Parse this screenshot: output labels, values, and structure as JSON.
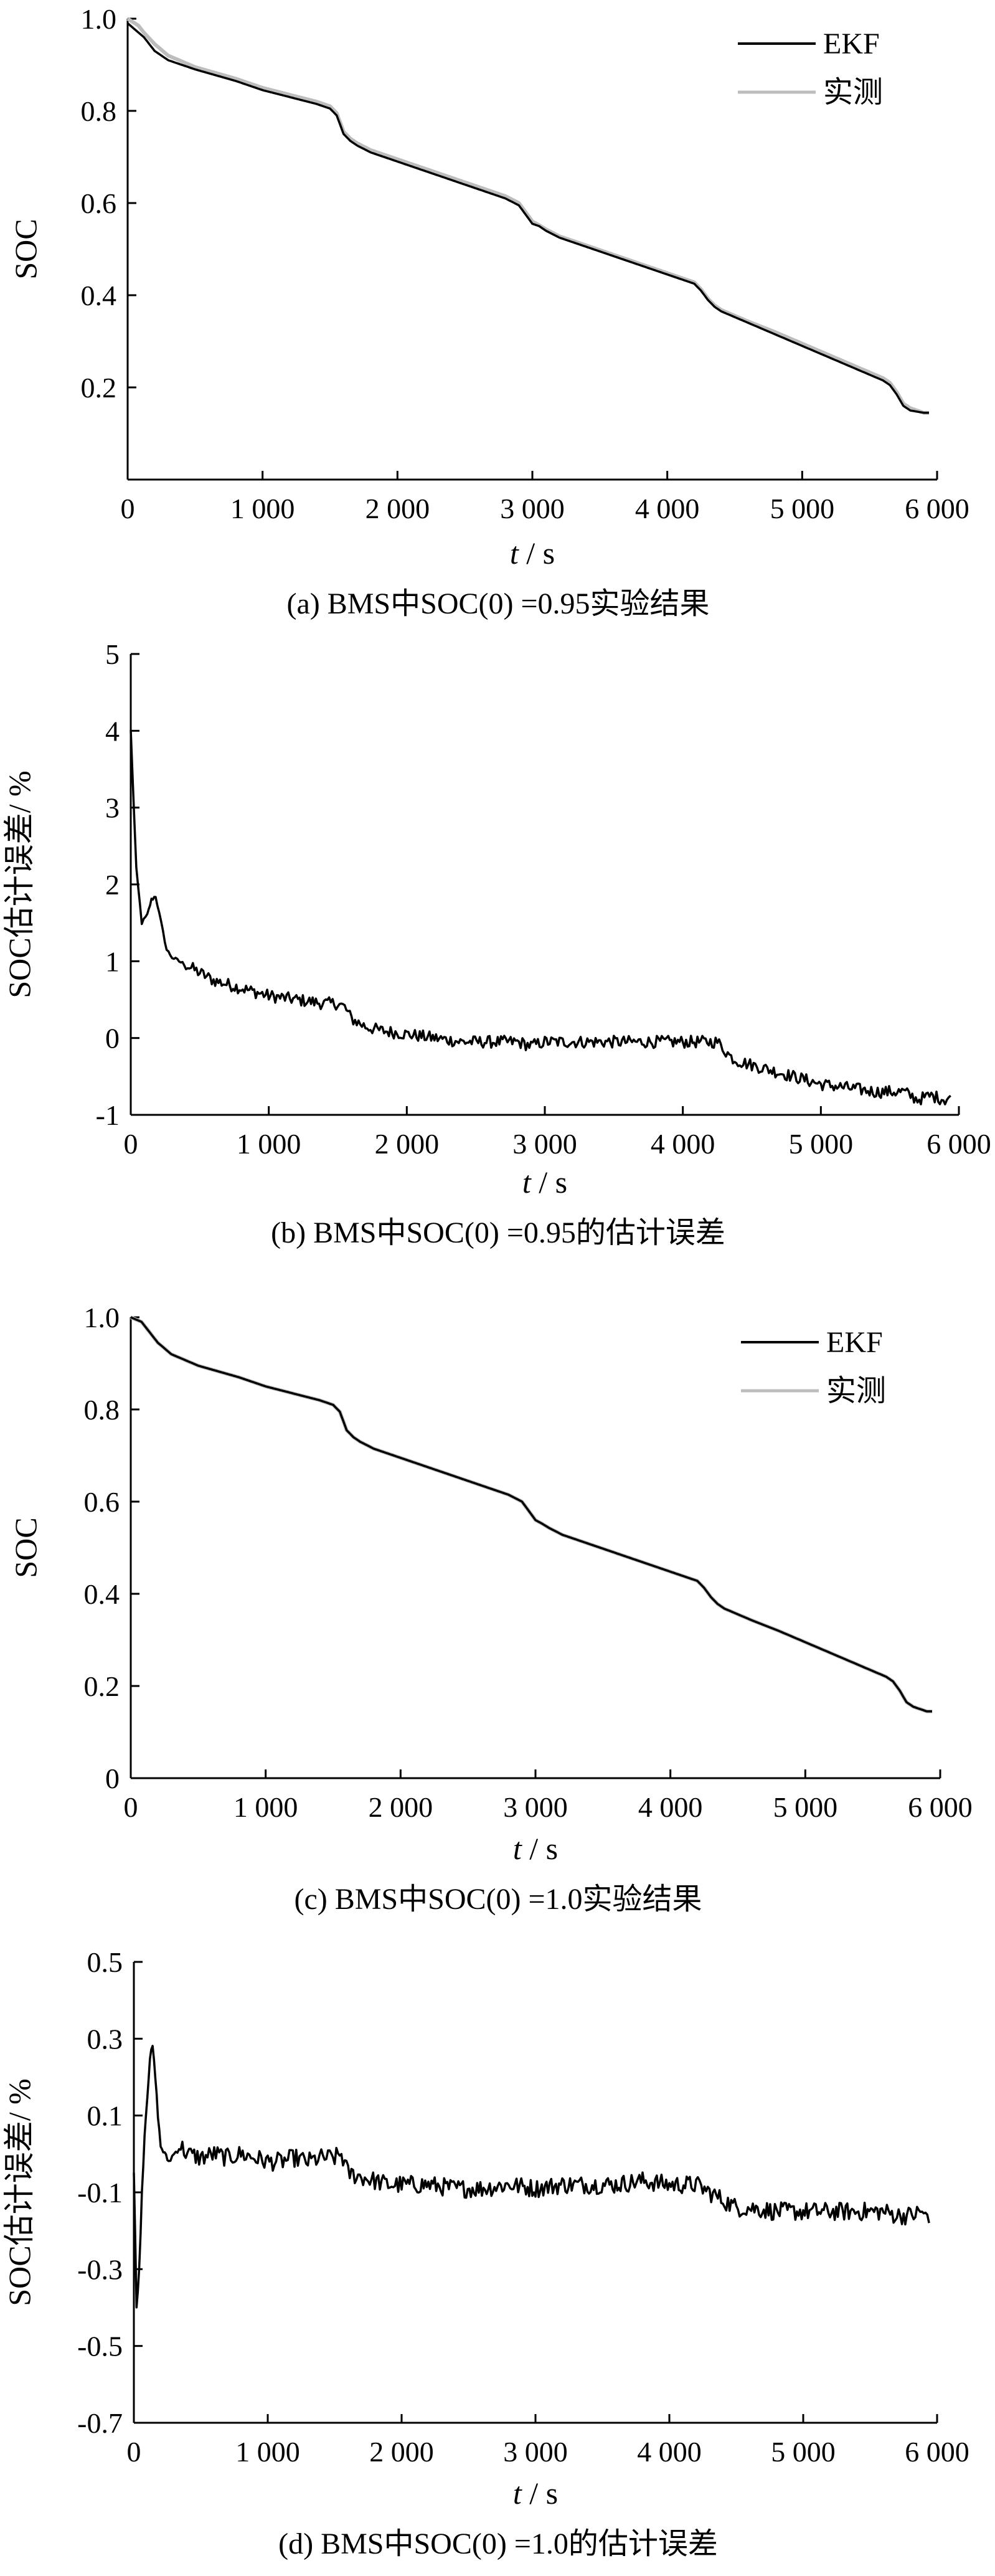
{
  "chart_data": [
    {
      "id": "a",
      "type": "line",
      "caption": "(a)  BMS中SOC(0) =0.95实验结果",
      "xlabel_var": "t",
      "xlabel_unit": " / s",
      "ylabel": "SOC",
      "xlim": [
        0,
        6000
      ],
      "ylim": [
        0,
        1.0
      ],
      "xticks": [
        0,
        1000,
        2000,
        3000,
        4000,
        5000,
        6000
      ],
      "xtick_labels": [
        "0",
        "1 000",
        "2 000",
        "3 000",
        "4 000",
        "5 000",
        "6 000"
      ],
      "yticks": [
        0.2,
        0.4,
        0.6,
        0.8,
        1.0
      ],
      "ytick_labels": [
        "0.2",
        "0.4",
        "0.6",
        "0.8",
        "1.0"
      ],
      "legend_position": "top-right",
      "series": [
        {
          "name": "EKF",
          "color": "#000000",
          "x": [
            0,
            80,
            120,
            200,
            300,
            500,
            800,
            1000,
            1200,
            1400,
            1500,
            1550,
            1600,
            1650,
            1700,
            1800,
            2000,
            2200,
            2400,
            2600,
            2800,
            2900,
            2950,
            3000,
            3050,
            3100,
            3200,
            3400,
            3600,
            3800,
            4000,
            4200,
            4250,
            4300,
            4350,
            4400,
            4600,
            4800,
            5000,
            5200,
            5400,
            5600,
            5650,
            5700,
            5750,
            5800,
            5900,
            5940
          ],
          "y": [
            0.99,
            0.97,
            0.96,
            0.93,
            0.91,
            0.89,
            0.865,
            0.845,
            0.83,
            0.815,
            0.805,
            0.79,
            0.75,
            0.735,
            0.725,
            0.71,
            0.69,
            0.67,
            0.65,
            0.63,
            0.61,
            0.595,
            0.575,
            0.555,
            0.55,
            0.54,
            0.525,
            0.505,
            0.485,
            0.465,
            0.445,
            0.425,
            0.41,
            0.39,
            0.375,
            0.365,
            0.34,
            0.315,
            0.29,
            0.265,
            0.24,
            0.215,
            0.205,
            0.185,
            0.16,
            0.15,
            0.145,
            0.145
          ]
        },
        {
          "name": "实测",
          "color": "#bdbdbd",
          "x": [
            0,
            80,
            120,
            200,
            300,
            500,
            800,
            1000,
            1200,
            1400,
            1500,
            1550,
            1600,
            1650,
            1700,
            1800,
            2000,
            2200,
            2400,
            2600,
            2800,
            2900,
            2950,
            3000,
            3050,
            3100,
            3200,
            3400,
            3600,
            3800,
            4000,
            4200,
            4250,
            4300,
            4350,
            4400,
            4600,
            4800,
            5000,
            5200,
            5400,
            5600,
            5650,
            5700,
            5750,
            5800,
            5900,
            5940
          ],
          "y": [
            1.0,
            0.985,
            0.97,
            0.945,
            0.92,
            0.895,
            0.87,
            0.85,
            0.835,
            0.82,
            0.81,
            0.795,
            0.755,
            0.74,
            0.73,
            0.715,
            0.695,
            0.675,
            0.655,
            0.635,
            0.615,
            0.6,
            0.58,
            0.56,
            0.552,
            0.543,
            0.528,
            0.508,
            0.488,
            0.468,
            0.448,
            0.428,
            0.413,
            0.393,
            0.378,
            0.368,
            0.343,
            0.32,
            0.295,
            0.27,
            0.245,
            0.22,
            0.21,
            0.19,
            0.165,
            0.155,
            0.145,
            0.145
          ]
        }
      ]
    },
    {
      "id": "b",
      "type": "line",
      "caption": "(b)  BMS中SOC(0) =0.95的估计误差",
      "xlabel_var": "t",
      "xlabel_unit": " / s",
      "ylabel": "SOC估计误差/ %",
      "xlim": [
        0,
        6000
      ],
      "ylim": [
        -1,
        5
      ],
      "xticks": [
        0,
        1000,
        2000,
        3000,
        4000,
        5000,
        6000
      ],
      "xtick_labels": [
        "0",
        "1 000",
        "2 000",
        "3 000",
        "4 000",
        "5 000",
        "6 000"
      ],
      "yticks": [
        -1,
        0,
        1,
        2,
        3,
        4,
        5
      ],
      "ytick_labels": [
        "-1",
        "0",
        "1",
        "2",
        "3",
        "4",
        "5"
      ],
      "series": [
        {
          "name": "",
          "color": "#000000",
          "x": [
            0,
            40,
            80,
            120,
            150,
            180,
            220,
            260,
            300,
            400,
            500,
            600,
            800,
            1000,
            1200,
            1400,
            1500,
            1550,
            1600,
            1700,
            1800,
            2000,
            2200,
            2400,
            2600,
            2800,
            2900,
            3000,
            3200,
            3500,
            3800,
            4000,
            4200,
            4250,
            4300,
            4350,
            4400,
            4500,
            4600,
            4800,
            5000,
            5200,
            5400,
            5600,
            5650,
            5700,
            5800,
            5900,
            5940
          ],
          "y": [
            4.0,
            2.2,
            1.5,
            1.6,
            1.8,
            1.85,
            1.5,
            1.15,
            1.05,
            0.95,
            0.85,
            0.75,
            0.65,
            0.55,
            0.5,
            0.45,
            0.45,
            0.4,
            0.25,
            0.15,
            0.1,
            0.05,
            0.0,
            -0.05,
            -0.05,
            -0.05,
            -0.1,
            -0.05,
            -0.05,
            -0.05,
            -0.05,
            -0.05,
            -0.05,
            -0.05,
            -0.15,
            -0.25,
            -0.3,
            -0.35,
            -0.4,
            -0.5,
            -0.6,
            -0.65,
            -0.7,
            -0.7,
            -0.75,
            -0.8,
            -0.75,
            -0.8,
            -0.75
          ]
        }
      ]
    },
    {
      "id": "c",
      "type": "line",
      "caption": "(c)  BMS中SOC(0) =1.0实验结果",
      "xlabel_var": "t",
      "xlabel_unit": " / s",
      "ylabel": "SOC",
      "xlim": [
        0,
        6000
      ],
      "ylim": [
        0,
        1.0
      ],
      "xticks": [
        0,
        1000,
        2000,
        3000,
        4000,
        5000,
        6000
      ],
      "xtick_labels": [
        "0",
        "1 000",
        "2 000",
        "3 000",
        "4 000",
        "5 000",
        "6 000"
      ],
      "yticks": [
        0,
        0.2,
        0.4,
        0.6,
        0.8,
        1.0
      ],
      "ytick_labels": [
        "0",
        "0.2",
        "0.4",
        "0.6",
        "0.8",
        "1.0"
      ],
      "legend_position": "top-right",
      "series": [
        {
          "name": "EKF",
          "color": "#000000",
          "x": [
            0,
            80,
            120,
            200,
            300,
            500,
            800,
            1000,
            1200,
            1400,
            1500,
            1550,
            1600,
            1650,
            1700,
            1800,
            2000,
            2200,
            2400,
            2600,
            2800,
            2900,
            2950,
            3000,
            3050,
            3100,
            3200,
            3400,
            3600,
            3800,
            4000,
            4200,
            4250,
            4300,
            4350,
            4400,
            4600,
            4800,
            5000,
            5200,
            5400,
            5600,
            5650,
            5700,
            5750,
            5800,
            5900,
            5940
          ],
          "y": [
            1.0,
            0.99,
            0.975,
            0.945,
            0.92,
            0.895,
            0.87,
            0.85,
            0.835,
            0.82,
            0.81,
            0.795,
            0.755,
            0.74,
            0.73,
            0.715,
            0.695,
            0.675,
            0.655,
            0.635,
            0.615,
            0.6,
            0.58,
            0.56,
            0.552,
            0.543,
            0.528,
            0.508,
            0.488,
            0.468,
            0.448,
            0.428,
            0.413,
            0.393,
            0.378,
            0.368,
            0.343,
            0.32,
            0.295,
            0.27,
            0.245,
            0.22,
            0.21,
            0.19,
            0.165,
            0.155,
            0.145,
            0.145
          ]
        },
        {
          "name": "实测",
          "color": "#bdbdbd",
          "x": [
            0,
            80,
            120,
            200,
            300,
            500,
            800,
            1000,
            1200,
            1400,
            1500,
            1550,
            1600,
            1650,
            1700,
            1800,
            2000,
            2200,
            2400,
            2600,
            2800,
            2900,
            2950,
            3000,
            3050,
            3100,
            3200,
            3400,
            3600,
            3800,
            4000,
            4200,
            4250,
            4300,
            4350,
            4400,
            4600,
            4800,
            5000,
            5200,
            5400,
            5600,
            5650,
            5700,
            5750,
            5800,
            5900,
            5940
          ],
          "y": [
            1.0,
            0.99,
            0.975,
            0.945,
            0.92,
            0.895,
            0.87,
            0.85,
            0.835,
            0.82,
            0.81,
            0.795,
            0.755,
            0.74,
            0.73,
            0.715,
            0.695,
            0.675,
            0.655,
            0.635,
            0.615,
            0.6,
            0.58,
            0.56,
            0.552,
            0.543,
            0.528,
            0.508,
            0.488,
            0.468,
            0.448,
            0.428,
            0.413,
            0.393,
            0.378,
            0.368,
            0.343,
            0.32,
            0.295,
            0.27,
            0.245,
            0.22,
            0.21,
            0.19,
            0.165,
            0.155,
            0.145,
            0.145
          ]
        }
      ]
    },
    {
      "id": "d",
      "type": "line",
      "caption": "(d)  BMS中SOC(0) =1.0的估计误差",
      "xlabel_var": "t",
      "xlabel_unit": " / s",
      "ylabel": "SOC估计误差/ %",
      "xlim": [
        0,
        6000
      ],
      "ylim": [
        -0.7,
        0.5
      ],
      "xticks": [
        0,
        1000,
        2000,
        3000,
        4000,
        5000,
        6000
      ],
      "xtick_labels": [
        "0",
        "1 000",
        "2 000",
        "3 000",
        "4 000",
        "5 000",
        "6 000"
      ],
      "yticks": [
        -0.7,
        -0.5,
        -0.3,
        -0.1,
        0.1,
        0.3,
        0.5
      ],
      "ytick_labels": [
        "-0.7",
        "-0.5",
        "-0.3",
        "-0.1",
        "0.1",
        "0.3",
        "0.5"
      ],
      "series": [
        {
          "name": "",
          "color": "#000000",
          "x": [
            0,
            20,
            40,
            60,
            80,
            100,
            120,
            140,
            160,
            180,
            200,
            230,
            260,
            300,
            350,
            400,
            500,
            600,
            700,
            800,
            900,
            1000,
            1100,
            1200,
            1300,
            1400,
            1500,
            1550,
            1600,
            1700,
            1800,
            1900,
            2000,
            2200,
            2400,
            2600,
            2800,
            3000,
            3200,
            3400,
            3600,
            3800,
            4000,
            4200,
            4300,
            4400,
            4500,
            4600,
            4800,
            5000,
            5200,
            5400,
            5600,
            5700,
            5800,
            5900,
            5940
          ],
          "y": [
            -0.05,
            -0.4,
            -0.3,
            -0.1,
            0.05,
            0.15,
            0.25,
            0.28,
            0.2,
            0.1,
            0.02,
            0.0,
            -0.02,
            0.0,
            0.02,
            0.0,
            -0.01,
            0.0,
            -0.01,
            0.0,
            -0.01,
            -0.02,
            -0.02,
            -0.01,
            -0.02,
            -0.01,
            -0.01,
            0.0,
            -0.05,
            -0.06,
            -0.07,
            -0.08,
            -0.08,
            -0.08,
            -0.09,
            -0.09,
            -0.08,
            -0.09,
            -0.08,
            -0.08,
            -0.08,
            -0.07,
            -0.08,
            -0.08,
            -0.1,
            -0.12,
            -0.14,
            -0.14,
            -0.15,
            -0.15,
            -0.15,
            -0.15,
            -0.15,
            -0.16,
            -0.16,
            -0.15,
            -0.18
          ]
        }
      ]
    }
  ]
}
